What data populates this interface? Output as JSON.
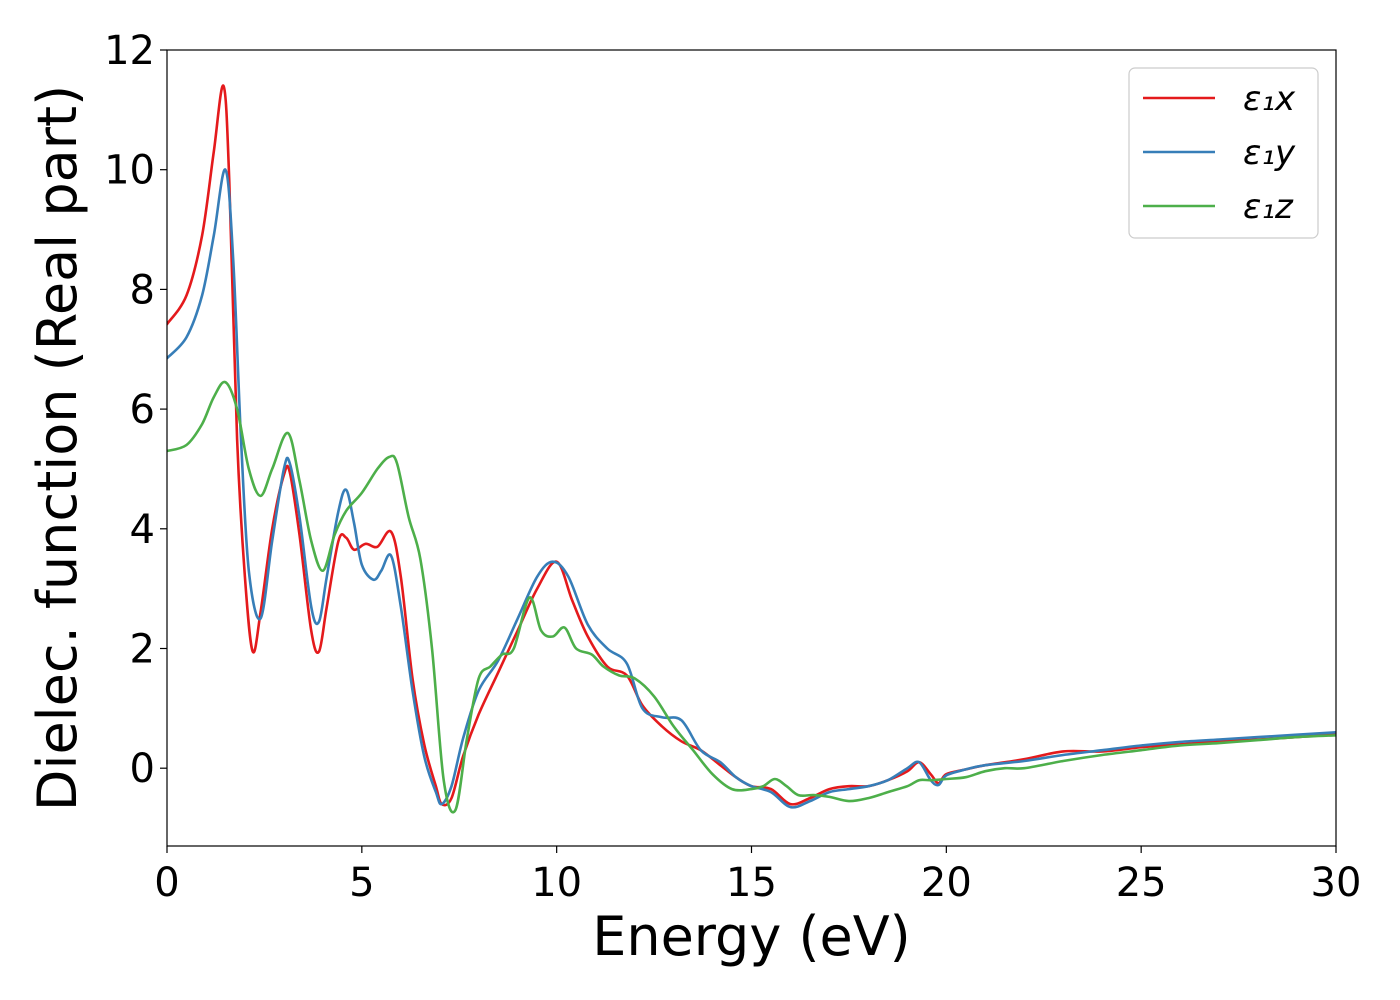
{
  "chart_data": {
    "type": "line",
    "xlabel": "Energy (eV)",
    "ylabel": "Dielec. function (Real part)",
    "xlim": [
      0,
      30
    ],
    "ylim": [
      -1.3,
      12
    ],
    "xticks": [
      "0",
      "5",
      "10",
      "15",
      "20",
      "25",
      "30"
    ],
    "yticks": [
      "0",
      "2",
      "4",
      "6",
      "8",
      "10",
      "12"
    ],
    "grid": false,
    "legend_position": "top-right",
    "series": [
      {
        "name": "ε₁x",
        "color": "#e41a1c",
        "x": [
          0,
          0.5,
          0.9,
          1.2,
          1.45,
          1.6,
          1.8,
          2.0,
          2.2,
          2.4,
          2.7,
          3.0,
          3.15,
          3.4,
          3.7,
          3.9,
          4.1,
          4.4,
          4.6,
          4.8,
          5.1,
          5.4,
          5.75,
          6.0,
          6.3,
          6.6,
          6.9,
          7.05,
          7.3,
          7.6,
          8.0,
          8.5,
          9.0,
          9.5,
          10.0,
          10.4,
          10.8,
          11.3,
          11.8,
          12.2,
          12.7,
          13.2,
          13.7,
          14.2,
          14.6,
          15.0,
          15.5,
          16.0,
          16.5,
          17.0,
          17.5,
          18.0,
          18.5,
          19.0,
          19.3,
          19.6,
          19.8,
          20.0,
          20.5,
          21.0,
          22.0,
          23.0,
          24.0,
          25.0,
          26.0,
          27.0,
          28.0,
          29.0,
          30.0
        ],
        "y": [
          7.42,
          7.9,
          8.9,
          10.3,
          11.4,
          9.8,
          5.5,
          3.2,
          1.95,
          2.6,
          4.0,
          4.9,
          4.95,
          3.9,
          2.3,
          1.95,
          2.7,
          3.8,
          3.85,
          3.65,
          3.75,
          3.7,
          3.95,
          3.2,
          1.5,
          0.4,
          -0.3,
          -0.6,
          -0.5,
          0.2,
          0.9,
          1.6,
          2.3,
          3.0,
          3.45,
          2.8,
          2.2,
          1.7,
          1.55,
          1.05,
          0.7,
          0.45,
          0.3,
          0.05,
          -0.15,
          -0.3,
          -0.35,
          -0.6,
          -0.5,
          -0.35,
          -0.3,
          -0.3,
          -0.2,
          -0.05,
          0.1,
          -0.1,
          -0.25,
          -0.1,
          -0.02,
          0.05,
          0.15,
          0.28,
          0.28,
          0.35,
          0.4,
          0.45,
          0.48,
          0.52,
          0.57
        ]
      },
      {
        "name": "ε₁y",
        "color": "#377eb8",
        "x": [
          0,
          0.5,
          0.9,
          1.2,
          1.5,
          1.7,
          1.9,
          2.1,
          2.4,
          2.7,
          3.0,
          3.15,
          3.4,
          3.7,
          3.9,
          4.1,
          4.4,
          4.6,
          4.8,
          5.0,
          5.3,
          5.5,
          5.75,
          6.0,
          6.3,
          6.6,
          6.9,
          7.05,
          7.3,
          7.6,
          8.0,
          8.5,
          9.0,
          9.5,
          9.9,
          10.3,
          10.8,
          11.3,
          11.8,
          12.2,
          12.7,
          13.2,
          13.7,
          14.2,
          14.6,
          15.0,
          15.5,
          16.0,
          16.5,
          17.0,
          17.5,
          18.0,
          18.5,
          19.0,
          19.3,
          19.6,
          19.8,
          20.0,
          20.5,
          21.0,
          22.0,
          23.0,
          24.0,
          25.0,
          26.0,
          27.0,
          28.0,
          29.0,
          30.0
        ],
        "y": [
          6.85,
          7.2,
          7.9,
          8.9,
          10.0,
          8.5,
          5.5,
          3.3,
          2.5,
          3.8,
          5.0,
          5.1,
          4.2,
          2.7,
          2.45,
          3.2,
          4.3,
          4.65,
          4.1,
          3.4,
          3.15,
          3.3,
          3.55,
          2.7,
          1.3,
          0.2,
          -0.4,
          -0.6,
          -0.3,
          0.5,
          1.3,
          1.8,
          2.5,
          3.2,
          3.45,
          3.2,
          2.4,
          2.0,
          1.75,
          1.0,
          0.85,
          0.8,
          0.3,
          0.1,
          -0.15,
          -0.3,
          -0.4,
          -0.65,
          -0.55,
          -0.4,
          -0.35,
          -0.3,
          -0.2,
          0.0,
          0.1,
          -0.2,
          -0.28,
          -0.12,
          -0.02,
          0.05,
          0.12,
          0.22,
          0.3,
          0.38,
          0.44,
          0.48,
          0.52,
          0.56,
          0.6
        ]
      },
      {
        "name": "ε₁z",
        "color": "#4daf4a",
        "x": [
          0,
          0.5,
          0.9,
          1.2,
          1.5,
          1.8,
          2.1,
          2.4,
          2.7,
          3.1,
          3.4,
          3.7,
          4.0,
          4.3,
          4.6,
          5.0,
          5.4,
          5.7,
          5.9,
          6.2,
          6.5,
          6.8,
          7.1,
          7.4,
          7.7,
          8.0,
          8.3,
          8.6,
          8.9,
          9.3,
          9.6,
          9.9,
          10.2,
          10.5,
          10.9,
          11.2,
          11.6,
          12.0,
          12.5,
          13.0,
          13.5,
          14.0,
          14.5,
          15.0,
          15.3,
          15.6,
          15.9,
          16.2,
          16.6,
          17.0,
          17.5,
          18.0,
          18.5,
          19.0,
          19.3,
          19.6,
          20.0,
          20.5,
          21.0,
          21.5,
          22.0,
          23.0,
          24.0,
          25.0,
          26.0,
          27.0,
          28.0,
          29.0,
          30.0
        ],
        "y": [
          5.3,
          5.4,
          5.75,
          6.2,
          6.45,
          6.0,
          5.0,
          4.55,
          5.0,
          5.6,
          4.8,
          3.8,
          3.3,
          3.9,
          4.3,
          4.6,
          5.0,
          5.2,
          5.1,
          4.2,
          3.5,
          2.0,
          -0.2,
          -0.7,
          0.5,
          1.5,
          1.7,
          1.9,
          2.0,
          2.85,
          2.3,
          2.2,
          2.35,
          2.0,
          1.9,
          1.7,
          1.55,
          1.5,
          1.2,
          0.7,
          0.3,
          -0.1,
          -0.35,
          -0.35,
          -0.3,
          -0.18,
          -0.3,
          -0.45,
          -0.45,
          -0.48,
          -0.55,
          -0.5,
          -0.4,
          -0.3,
          -0.2,
          -0.2,
          -0.18,
          -0.15,
          -0.05,
          0.0,
          0.0,
          0.12,
          0.22,
          0.3,
          0.38,
          0.42,
          0.47,
          0.52,
          0.55
        ]
      }
    ]
  }
}
